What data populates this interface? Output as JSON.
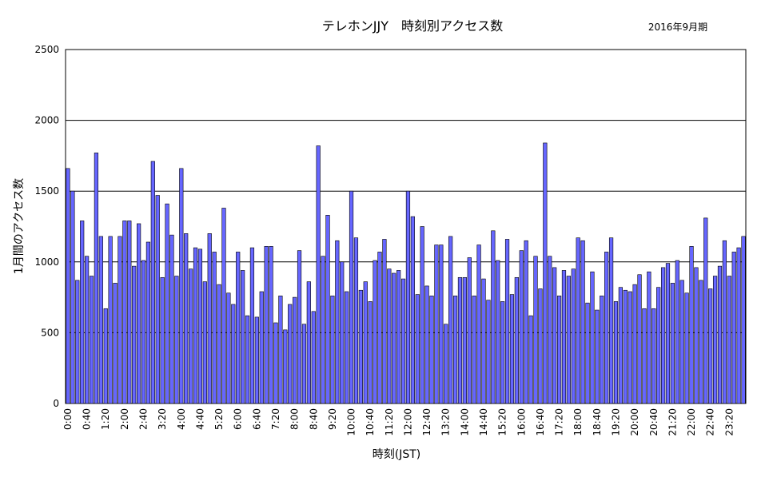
{
  "chart_data": {
    "type": "bar",
    "title": "テレホンJJY　時刻別アクセス数",
    "subtitle": "2016年9月期",
    "xlabel": "時刻(JST)",
    "ylabel": "1月間のアクセス数",
    "ylim": [
      0,
      2500
    ],
    "yticks": [
      0,
      500,
      1000,
      1500,
      2000,
      2500
    ],
    "grid": true,
    "legend": "none",
    "colors": {
      "bar_fill": "#6666ff",
      "bar_stroke": "#000000",
      "grid": "#000000",
      "frame": "#000000"
    },
    "x_tick_labels": [
      "0:00",
      "0:40",
      "1:20",
      "2:00",
      "2:40",
      "3:20",
      "4:00",
      "4:40",
      "5:20",
      "6:00",
      "6:40",
      "7:20",
      "8:00",
      "8:40",
      "9:20",
      "10:00",
      "10:40",
      "11:20",
      "12:00",
      "12:40",
      "13:20",
      "14:00",
      "14:40",
      "15:20",
      "16:00",
      "16:40",
      "17:20",
      "18:00",
      "18:40",
      "19:20",
      "20:00",
      "20:40",
      "21:20",
      "22:00",
      "22:40",
      "23:20"
    ],
    "values": [
      1660,
      1500,
      870,
      1290,
      1040,
      900,
      1770,
      1180,
      670,
      1180,
      850,
      1180,
      1290,
      1290,
      970,
      1270,
      1010,
      1140,
      1710,
      1470,
      890,
      1410,
      1190,
      900,
      1660,
      1200,
      950,
      1100,
      1090,
      860,
      1200,
      1070,
      840,
      1380,
      780,
      700,
      1070,
      940,
      620,
      1100,
      610,
      790,
      1110,
      1110,
      570,
      760,
      520,
      700,
      750,
      1080,
      560,
      860,
      650,
      1820,
      1040,
      1330,
      760,
      1150,
      1000,
      790,
      1500,
      1170,
      800,
      860,
      720,
      1010,
      1070,
      1160,
      950,
      920,
      940,
      880,
      1500,
      1320,
      770,
      1250,
      830,
      760,
      1120,
      1120,
      560,
      1180,
      760,
      890,
      890,
      1030,
      760,
      1120,
      880,
      730,
      1220,
      1010,
      720,
      1160,
      770,
      890,
      1080,
      1150,
      620,
      1040,
      810,
      1840,
      1040,
      960,
      760,
      940,
      900,
      950,
      1170,
      1150,
      710,
      930,
      660,
      760,
      1070,
      1170,
      720,
      820,
      800,
      790,
      840,
      910,
      670,
      930,
      670,
      820,
      960,
      990,
      850,
      1010,
      870,
      780,
      1110,
      960,
      870,
      1310,
      810,
      900,
      970,
      1150,
      900,
      1070,
      1100,
      1180
    ]
  }
}
